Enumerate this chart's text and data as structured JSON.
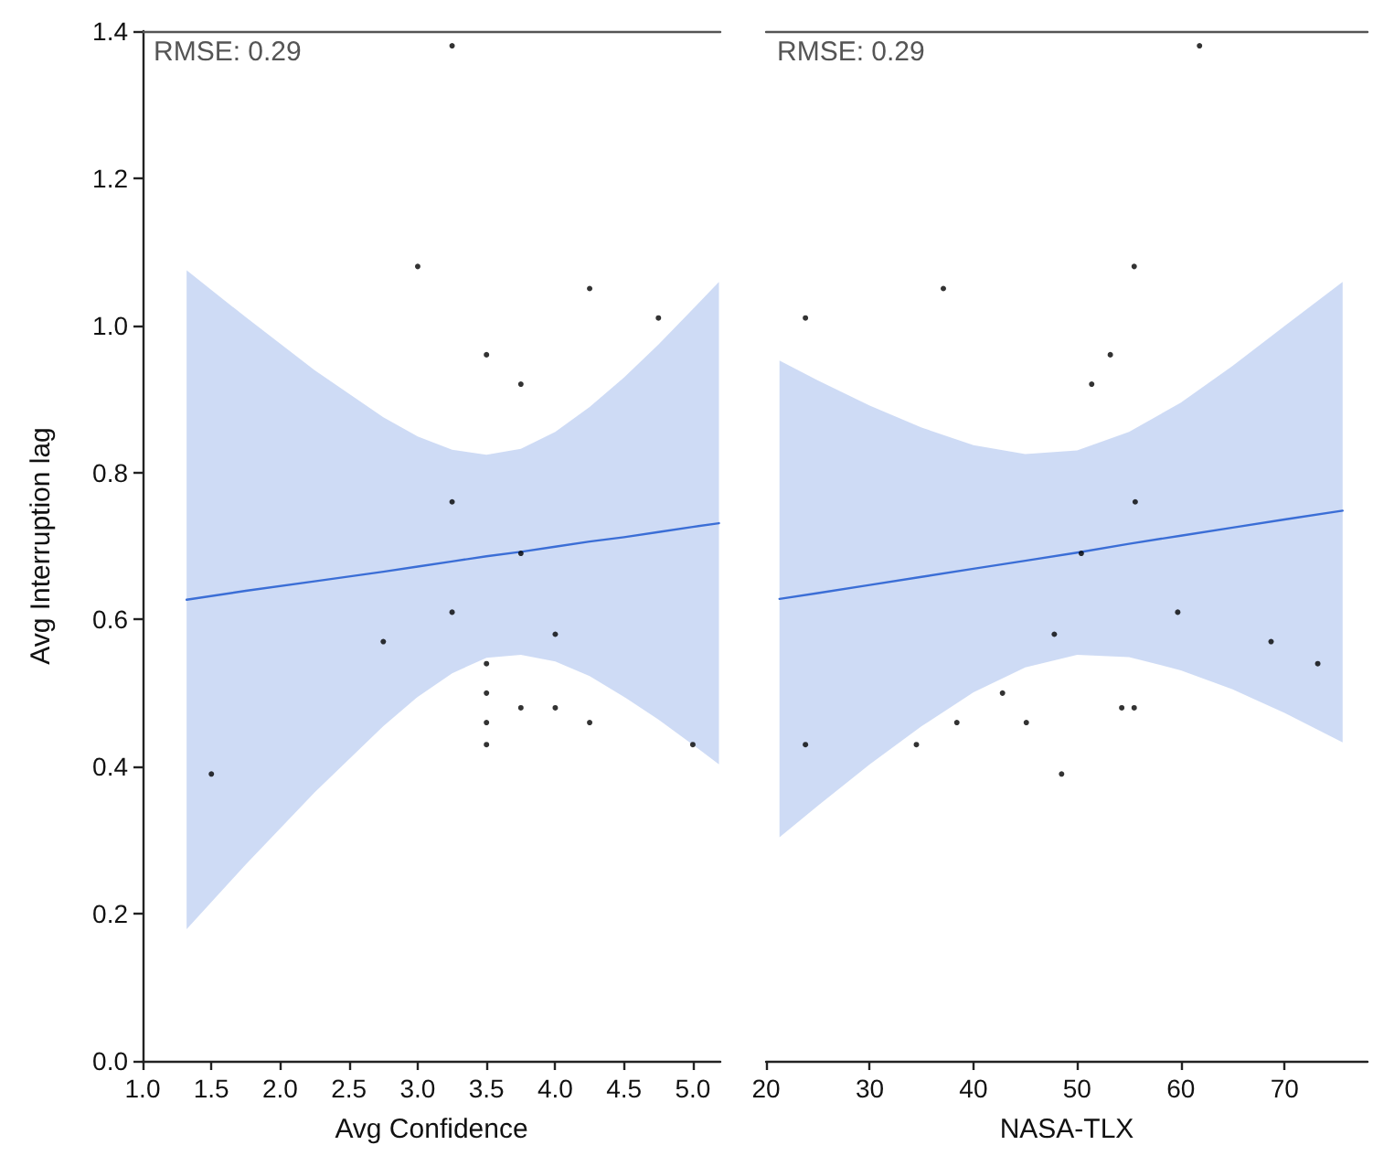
{
  "chart_data": [
    {
      "type": "scatter",
      "xlabel": "Avg Confidence",
      "ylabel": "Avg Interruption lag",
      "annotations": [
        "RMSE: 0.29"
      ],
      "xlim": [
        1.0,
        5.2
      ],
      "xticks": [
        {
          "value": 1,
          "label": "1.0"
        },
        1.5,
        {
          "value": 2,
          "label": "2.0"
        },
        2.5,
        {
          "value": 3,
          "label": "3.0"
        },
        3.5,
        {
          "value": 4,
          "label": "4.0"
        },
        4.5,
        {
          "value": 5,
          "label": "5.0"
        }
      ],
      "ylim": [
        0,
        1.4
      ],
      "yticks": [
        {
          "value": 0,
          "label": "0.0"
        },
        0.2,
        0.4,
        0.6,
        0.8,
        {
          "value": 1,
          "label": "1.0"
        },
        1.2,
        1.4
      ],
      "grid": false,
      "series": [
        {
          "type": "scatter",
          "color": "#000000",
          "marker": "circle",
          "x": [
            3.25,
            3.0,
            4.25,
            4.75,
            3.5,
            3.75,
            3.25,
            3.75,
            3.25,
            2.75,
            4.0,
            3.5,
            3.5,
            3.5,
            3.5,
            3.75,
            4.0,
            4.25,
            5.0,
            1.5
          ],
          "values": [
            1.38,
            1.08,
            1.05,
            1.01,
            0.96,
            0.92,
            0.76,
            0.69,
            0.61,
            0.57,
            0.58,
            0.54,
            0.5,
            0.46,
            0.43,
            0.48,
            0.48,
            0.46,
            0.43,
            0.39
          ]
        },
        {
          "type": "line",
          "color": "#3b6ed6",
          "marker": "none",
          "line_style": "solid",
          "x": [
            1.32,
            1.75,
            2.25,
            2.75,
            3.0,
            3.25,
            3.5,
            3.75,
            4.0,
            4.25,
            4.5,
            4.75,
            5.0,
            5.19
          ],
          "values": [
            0.627,
            0.639,
            0.652,
            0.665,
            0.672,
            0.679,
            0.686,
            0.692,
            0.699,
            0.706,
            0.712,
            0.719,
            0.726,
            0.731
          ],
          "upper": [
            1.075,
            1.011,
            0.939,
            0.875,
            0.849,
            0.831,
            0.824,
            0.832,
            0.855,
            0.889,
            0.929,
            0.974,
            1.022,
            1.059
          ],
          "lower": [
            0.179,
            0.267,
            0.365,
            0.455,
            0.495,
            0.527,
            0.548,
            0.552,
            0.543,
            0.523,
            0.495,
            0.464,
            0.43,
            0.403
          ]
        }
      ]
    },
    {
      "type": "scatter",
      "xlabel": "NASA-TLX",
      "annotations": [
        "RMSE: 0.29"
      ],
      "xlim": [
        20,
        78
      ],
      "xticks": [
        20,
        30,
        40,
        50,
        60,
        70
      ],
      "ylim": [
        0,
        1.4
      ],
      "tick_labels": "x",
      "grid": false,
      "series": [
        {
          "type": "scatter",
          "color": "#000000",
          "marker": "circle",
          "x": [
            61.8,
            23.8,
            37.1,
            55.5,
            53.2,
            51.4,
            55.6,
            50.4,
            59.7,
            47.8,
            68.7,
            73.2,
            42.8,
            38.4,
            45.1,
            54.3,
            55.5,
            23.8,
            34.5,
            48.5
          ],
          "values": [
            1.38,
            1.01,
            1.05,
            1.08,
            0.96,
            0.92,
            0.76,
            0.69,
            0.61,
            0.58,
            0.57,
            0.54,
            0.5,
            0.46,
            0.46,
            0.48,
            0.48,
            0.43,
            0.43,
            0.39
          ]
        },
        {
          "type": "line",
          "color": "#3b6ed6",
          "marker": "none",
          "line_style": "solid",
          "x": [
            21.3,
            25,
            30,
            35,
            40,
            45,
            50,
            55,
            60,
            65,
            70,
            75.6
          ],
          "values": [
            0.628,
            0.636,
            0.647,
            0.658,
            0.669,
            0.68,
            0.691,
            0.703,
            0.714,
            0.725,
            0.736,
            0.748
          ],
          "upper": [
            0.952,
            0.925,
            0.891,
            0.861,
            0.837,
            0.825,
            0.83,
            0.855,
            0.895,
            0.945,
            0.999,
            1.059
          ],
          "lower": [
            0.304,
            0.347,
            0.403,
            0.455,
            0.501,
            0.535,
            0.552,
            0.549,
            0.531,
            0.505,
            0.473,
            0.433
          ]
        }
      ]
    }
  ]
}
